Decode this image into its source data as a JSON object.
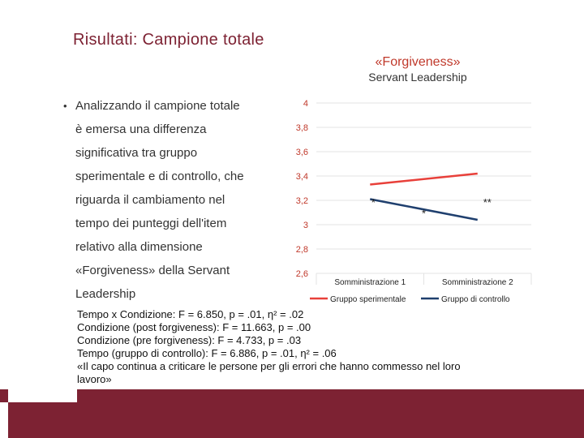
{
  "slide": {
    "title": "Risultati: Campione totale"
  },
  "bullet": {
    "marker": "•",
    "lines": [
      "Analizzando il campione totale",
      "è emersa una differenza",
      "significativa tra gruppo",
      "sperimentale e di controllo, che",
      "riguarda il cambiamento nel",
      "tempo dei punteggi dell'item",
      "relativo alla dimensione",
      "«Forgiveness» della Servant",
      "Leadership"
    ]
  },
  "chart_data": {
    "type": "line",
    "title": "«Forgiveness»",
    "subtitle": "Servant Leadership",
    "categories": [
      "Somministrazione 1",
      "Somministrazione 2"
    ],
    "series": [
      {
        "name": "Gruppo sperimentale",
        "values": [
          3.33,
          3.42
        ],
        "color": "#e8403a"
      },
      {
        "name": "Gruppo di controllo",
        "values": [
          3.21,
          3.04
        ],
        "color": "#1f3f6e"
      }
    ],
    "ylim": [
      2.6,
      4
    ],
    "yticks": [
      "4",
      "3,8",
      "3,6",
      "3,4",
      "3,2",
      "3",
      "2,8",
      "2,6"
    ],
    "legend": "bottom",
    "grid": true,
    "annotations": [
      {
        "text": "*",
        "category": 0,
        "y": 3.22
      },
      {
        "text": "**",
        "category": 1,
        "y": 3.22
      },
      {
        "text": "*",
        "category": 0.5,
        "y": 3.13
      }
    ]
  },
  "stats": {
    "lines": [
      "Tempo x Condizione: F = 6.850, p = .01, η² = .02",
      "Condizione (post forgiveness): F = 11.663, p = .00",
      "Condizione (pre forgiveness): F = 4.733, p = .03",
      "Tempo (gruppo di controllo): F = 6.886, p = .01, η² = .06",
      "«Il capo continua a criticare le persone per gli errori che hanno commesso nel loro",
      "lavoro»"
    ]
  },
  "colors": {
    "accent": "#7d2233"
  }
}
